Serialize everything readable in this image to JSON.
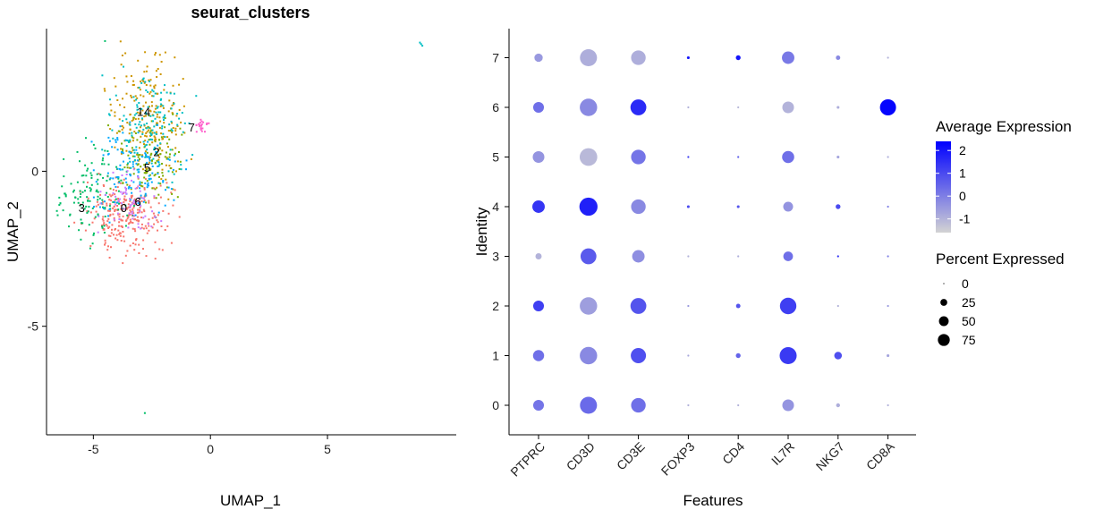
{
  "chart_data": [
    {
      "type": "scatter",
      "title": "seurat_clusters",
      "xlabel": "UMAP_1",
      "ylabel": "UMAP_2",
      "xlim": [
        -7.0,
        10.5
      ],
      "ylim": [
        -8.5,
        4.6
      ],
      "xticks": [
        "-5",
        "0",
        "5"
      ],
      "yticks": [
        "-5",
        "0"
      ],
      "grid": false,
      "clusters": [
        {
          "name": "0",
          "color": "#F8766D",
          "center": [
            -3.6,
            -1.4
          ],
          "spread": [
            0.85,
            0.55
          ],
          "n": 260,
          "label_pos": [
            -3.7,
            -1.2
          ]
        },
        {
          "name": "1",
          "color": "#CD9600",
          "center": [
            -2.7,
            1.6
          ],
          "spread": [
            0.75,
            1.0
          ],
          "n": 220,
          "label_pos": [
            -3.0,
            1.9
          ]
        },
        {
          "name": "2",
          "color": "#7CAE00",
          "center": [
            -2.6,
            0.3
          ],
          "spread": [
            0.7,
            0.7
          ],
          "n": 110,
          "label_pos": [
            -2.3,
            0.6
          ]
        },
        {
          "name": "3",
          "color": "#00BE67",
          "center": [
            -5.0,
            -0.7
          ],
          "spread": [
            0.7,
            0.7
          ],
          "n": 130,
          "label_pos": [
            -5.5,
            -1.2
          ]
        },
        {
          "name": "4",
          "color": "#00BFC4",
          "center": [
            -2.6,
            1.4
          ],
          "spread": [
            0.8,
            0.9
          ],
          "n": 150,
          "label_pos": [
            -2.7,
            1.9
          ]
        },
        {
          "name": "5",
          "color": "#00A9FF",
          "center": [
            -3.2,
            -0.1
          ],
          "spread": [
            0.9,
            0.7
          ],
          "n": 120,
          "label_pos": [
            -2.7,
            0.1
          ]
        },
        {
          "name": "6",
          "color": "#C77CFF",
          "center": [
            -3.4,
            -1.0
          ],
          "spread": [
            0.6,
            0.45
          ],
          "n": 70,
          "label_pos": [
            -3.1,
            -1.0
          ]
        },
        {
          "name": "7",
          "color": "#FF61CC",
          "center": [
            -0.4,
            1.45
          ],
          "spread": [
            0.14,
            0.1
          ],
          "n": 22,
          "label_pos": [
            -0.8,
            1.4
          ]
        }
      ],
      "outliers": [
        {
          "x": 9.0,
          "y": 4.1,
          "cluster": "4"
        },
        {
          "x": 8.95,
          "y": 4.15,
          "cluster": "4"
        },
        {
          "x": 9.05,
          "y": 4.05,
          "cluster": "4"
        },
        {
          "x": -2.8,
          "y": -7.8,
          "cluster": "3"
        },
        {
          "x": -4.5,
          "y": 4.2,
          "cluster": "3"
        }
      ]
    },
    {
      "type": "dot",
      "xlabel": "Features",
      "ylabel": "Identity",
      "features": [
        "PTPRC",
        "CD3D",
        "CD3E",
        "FOXP3",
        "CD4",
        "IL7R",
        "NKG7",
        "CD8A"
      ],
      "identities": [
        "0",
        "1",
        "2",
        "3",
        "4",
        "5",
        "6",
        "7"
      ],
      "avg_exp": [
        [
          0.2,
          0.4,
          0.3,
          -1.0,
          -1.0,
          -0.4,
          -0.9,
          -1.0
        ],
        [
          0.3,
          -0.2,
          0.9,
          -0.8,
          0.5,
          1.3,
          0.9,
          -0.7
        ],
        [
          1.2,
          -0.6,
          0.8,
          -0.5,
          0.8,
          1.2,
          -1.0,
          -0.5
        ],
        [
          -1.0,
          0.7,
          -0.3,
          -1.0,
          -0.9,
          0.3,
          1.5,
          0.0
        ],
        [
          1.4,
          1.8,
          -0.2,
          1.0,
          0.8,
          -0.4,
          1.0,
          0.0
        ],
        [
          -0.4,
          -1.1,
          0.2,
          1.2,
          0.6,
          0.3,
          -0.7,
          -0.9
        ],
        [
          0.3,
          -0.2,
          1.6,
          -1.0,
          -1.1,
          -1.0,
          -0.9,
          2.3
        ],
        [
          -0.5,
          -0.9,
          -0.9,
          2.0,
          2.0,
          0.1,
          -0.2,
          -1.0
        ]
      ],
      "pct_exp": [
        [
          30,
          75,
          55,
          1,
          1,
          35,
          4,
          1
        ],
        [
          32,
          78,
          60,
          1,
          6,
          75,
          15,
          2
        ],
        [
          30,
          78,
          65,
          1,
          5,
          70,
          1,
          1
        ],
        [
          10,
          65,
          40,
          1,
          1,
          24,
          1,
          1
        ],
        [
          40,
          85,
          55,
          2,
          2,
          25,
          6,
          1
        ],
        [
          35,
          80,
          55,
          1,
          1,
          38,
          2,
          1
        ],
        [
          30,
          78,
          65,
          1,
          1,
          35,
          2,
          67
        ],
        [
          18,
          75,
          55,
          2,
          6,
          40,
          5,
          1
        ]
      ],
      "color_scale": {
        "low": "#d3d3d3",
        "high": "#0000ff",
        "min": -1.6,
        "max": 2.4
      },
      "color_legend": {
        "title": "Average Expression",
        "ticks": [
          "2",
          "1",
          "0",
          "-1"
        ]
      },
      "size_legend": {
        "title": "Percent Expressed",
        "ticks": [
          "0",
          "25",
          "50",
          "75"
        ]
      }
    }
  ]
}
